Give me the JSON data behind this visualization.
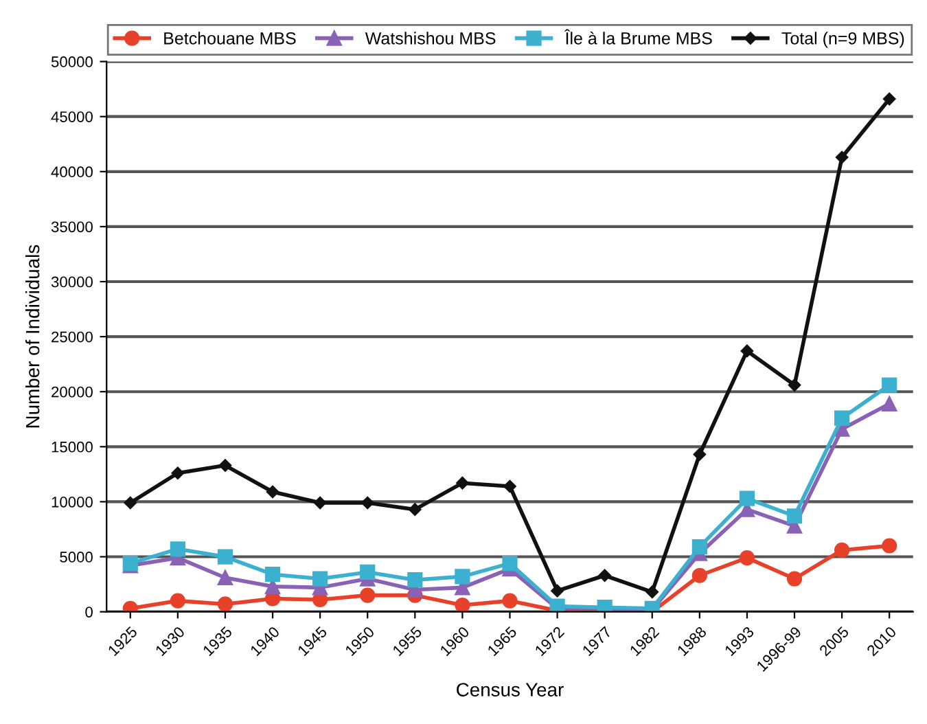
{
  "chart_data": {
    "type": "line",
    "xlabel": "Census Year",
    "ylabel": "Number of Individuals",
    "categories": [
      "1925",
      "1930",
      "1935",
      "1940",
      "1945",
      "1950",
      "1955",
      "1960",
      "1965",
      "1972",
      "1977",
      "1982",
      "1988",
      "1993",
      "1996-99",
      "2005",
      "2010"
    ],
    "series": [
      {
        "name": "Betchouane MBS",
        "color": "#e8412a",
        "marker": "circle",
        "values": [
          300,
          1000,
          700,
          1200,
          1100,
          1500,
          1500,
          600,
          1000,
          100,
          0,
          0,
          3300,
          4900,
          3000,
          5600,
          6000
        ]
      },
      {
        "name": "Watshishou MBS",
        "color": "#8a62b5",
        "marker": "triangle",
        "values": [
          4200,
          4900,
          3100,
          2300,
          2200,
          3000,
          2000,
          2200,
          3900,
          300,
          300,
          200,
          5300,
          9300,
          7800,
          16600,
          18900
        ]
      },
      {
        "name": "Île à la Brume MBS",
        "color": "#3cb0cf",
        "marker": "square",
        "values": [
          4400,
          5700,
          5000,
          3400,
          3000,
          3600,
          2900,
          3200,
          4400,
          500,
          400,
          300,
          5900,
          10300,
          8700,
          17600,
          20600
        ]
      },
      {
        "name": "Total (n=9 MBS)",
        "color": "#111111",
        "marker": "diamond",
        "values": [
          9900,
          12600,
          13300,
          10900,
          9900,
          9900,
          9300,
          11700,
          11400,
          1900,
          3300,
          1800,
          14300,
          23700,
          20600,
          41300,
          46600
        ]
      }
    ],
    "ylim": [
      0,
      50000
    ],
    "yticks": [
      0,
      5000,
      10000,
      15000,
      20000,
      25000,
      30000,
      35000,
      40000,
      45000,
      50000
    ],
    "grid": "y",
    "legend": "top",
    "line_style": "solid"
  }
}
